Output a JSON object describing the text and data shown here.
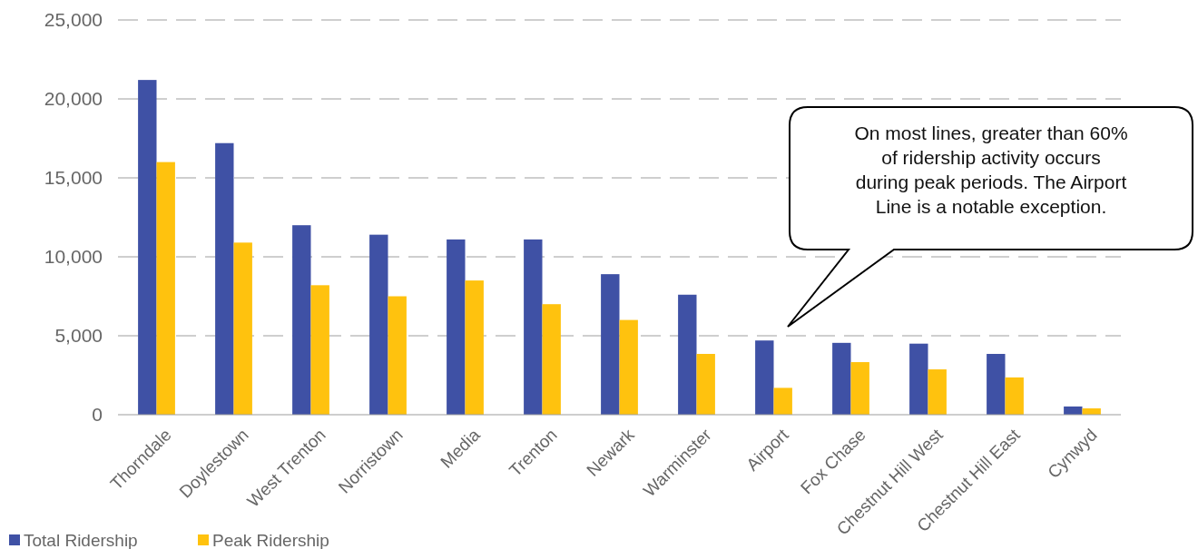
{
  "chart_data": {
    "type": "bar",
    "categories": [
      "Thorndale",
      "Doylestown",
      "West Trenton",
      "Norristown",
      "Media",
      "Trenton",
      "Newark",
      "Warminster",
      "Airport",
      "Fox Chase",
      "Chestnut Hill West",
      "Chestnut Hill East",
      "Cynwyd"
    ],
    "series": [
      {
        "name": "Total Ridership",
        "color": "#3f51a5",
        "values": [
          21200,
          17200,
          12000,
          11400,
          11100,
          11100,
          8900,
          7600,
          4700,
          4550,
          4500,
          3850,
          520
        ]
      },
      {
        "name": "Peak Ridership",
        "color": "#ffc20e",
        "values": [
          16000,
          10900,
          8200,
          7500,
          8500,
          7000,
          6000,
          3850,
          1700,
          3330,
          2870,
          2360,
          400
        ]
      }
    ],
    "ylim": [
      0,
      25000
    ],
    "yticks": [
      {
        "value": 0,
        "label": "0"
      },
      {
        "value": 5000,
        "label": "5,000"
      },
      {
        "value": 10000,
        "label": "10,000"
      },
      {
        "value": 15000,
        "label": "15,000"
      },
      {
        "value": 20000,
        "label": "20,000"
      },
      {
        "value": 25000,
        "label": "25,000"
      }
    ],
    "grid": "y",
    "line_style": "dashed",
    "legend": "bottom left",
    "annotations": [
      "On most lines, greater than 60% of ridership activity occurs during peak periods. The Airport Line is a notable exception."
    ]
  }
}
